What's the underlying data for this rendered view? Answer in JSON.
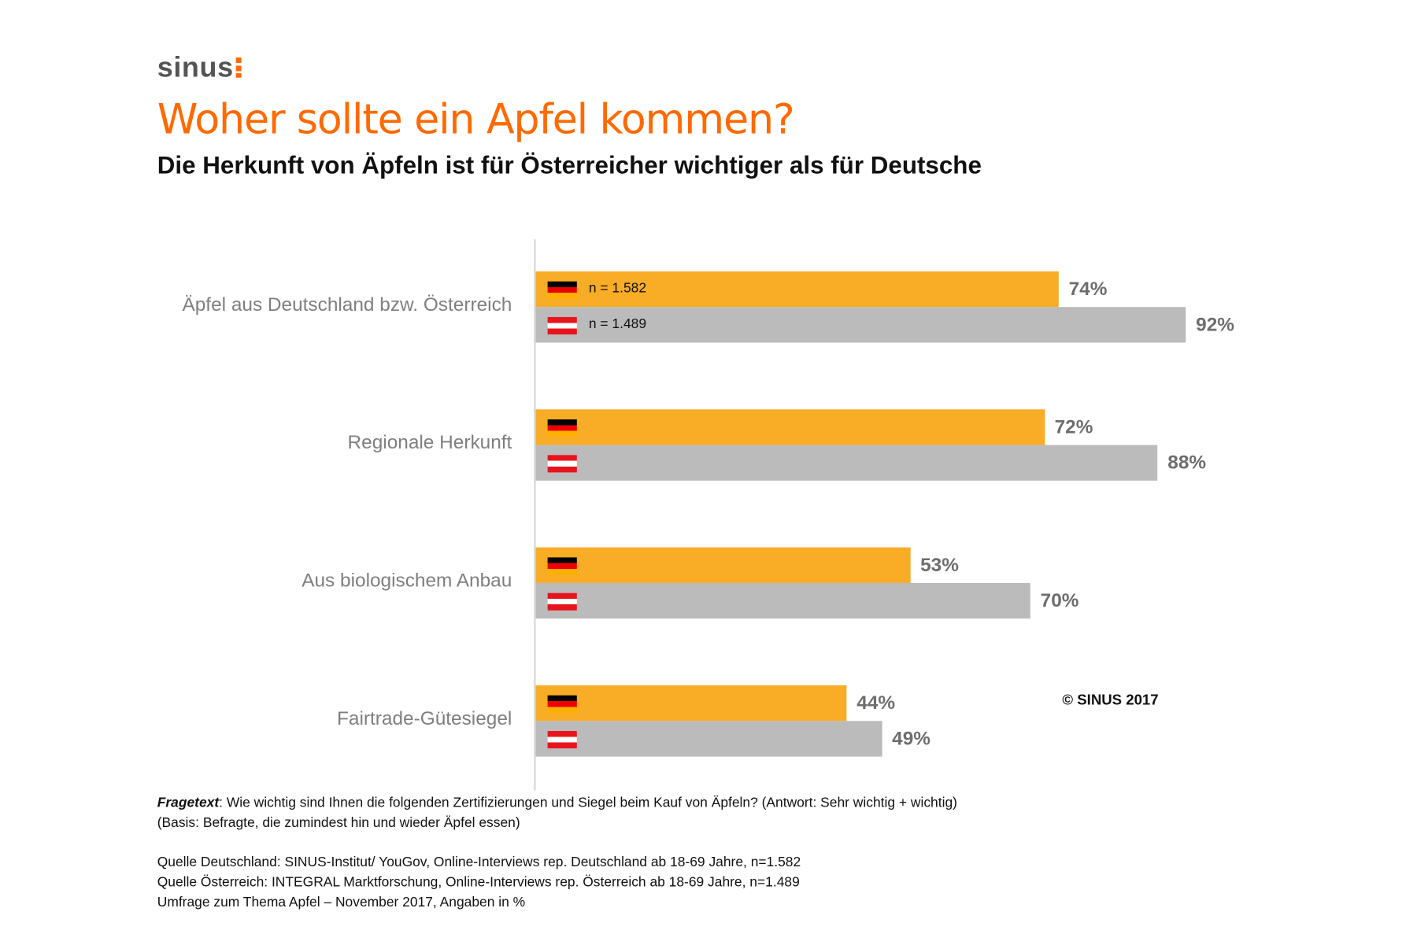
{
  "logo": "sinus",
  "chart_data": {
    "type": "bar",
    "orientation": "horizontal",
    "title": "Woher sollte ein Apfel kommen?",
    "subtitle": "Die Herkunft von Äpfeln ist für Österreicher wichtiger als für Deutsche",
    "categories": [
      "Äpfel aus Deutschland bzw. Österreich",
      "Regionale Herkunft",
      "Aus biologischem Anbau",
      "Fairtrade-Gütesiegel"
    ],
    "series": [
      {
        "flag": "germany-flag",
        "sample": "n = 1.582",
        "color": "#f9ac25",
        "values": [
          74,
          72,
          53,
          44
        ],
        "labels": [
          "74%",
          "72%",
          "53%",
          "44%"
        ]
      },
      {
        "flag": "austria-flag",
        "sample": "n = 1.489",
        "color": "#bbbbbb",
        "values": [
          92,
          88,
          70,
          49
        ],
        "labels": [
          "92%",
          "88%",
          "70%",
          "49%"
        ]
      }
    ],
    "xlim": [
      0,
      100
    ],
    "grid": false
  },
  "copyright": "© SINUS 2017",
  "notes": {
    "question_label": "Fragetext",
    "question": ": Wie wichtig sind Ihnen die folgenden Zertifizierungen und Siegel beim Kauf von Äpfeln? (Antwort: Sehr wichtig + wichtig)",
    "basis": "(Basis: Befragte, die zumindest hin und wieder Äpfel essen)",
    "source_de": "Quelle Deutschland: SINUS-Institut/ YouGov, Online-Interviews rep. Deutschland ab 18-69 Jahre, n=1.582",
    "source_at": "Quelle Österreich: INTEGRAL Marktforschung, Online-Interviews rep. Österreich ab 18-69 Jahre, n=1.489",
    "survey": "Umfrage zum Thema Apfel – November 2017, Angaben in %"
  }
}
